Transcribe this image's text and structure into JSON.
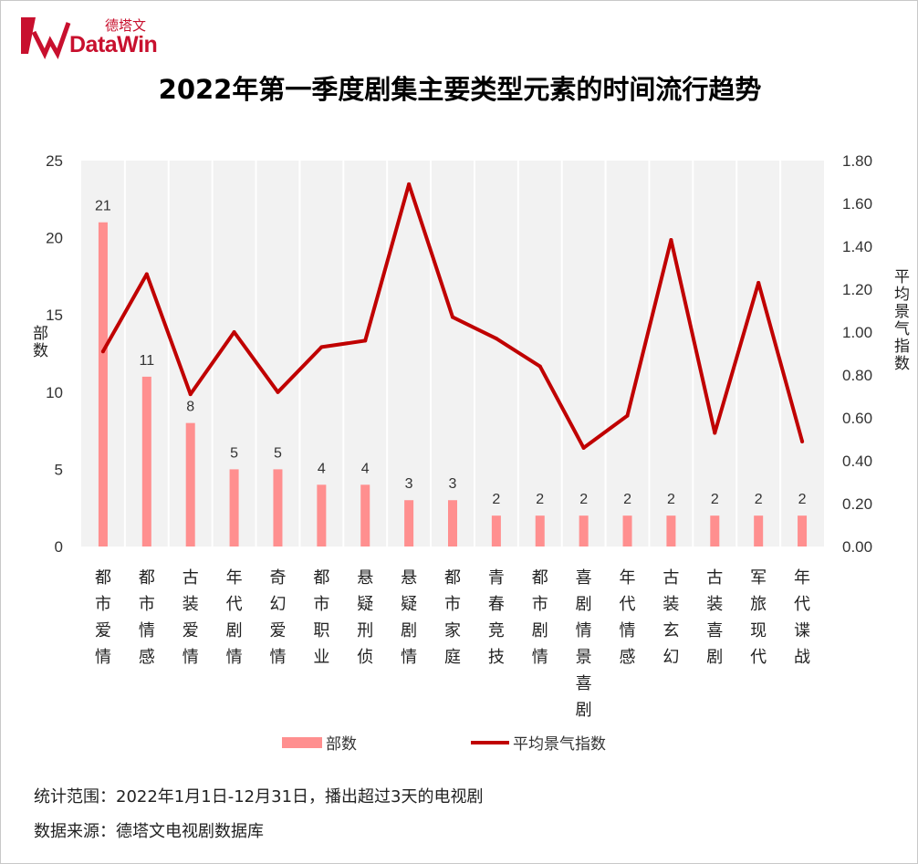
{
  "logo": {
    "cn": "德塔文",
    "en": "DataWin"
  },
  "title": "2022年第一季度剧集主要类型元素的时间流行趋势",
  "legend": {
    "bar_label": "部数",
    "line_label": "平均景气指数"
  },
  "footer": {
    "line1": "统计范围：2022年1月1日-12月31日，播出超过3天的电视剧",
    "line2": "数据来源：德塔文电视剧数据库"
  },
  "colors": {
    "bar": "#ff8f8f",
    "line": "#c00000",
    "brand": "#c8102e",
    "plot_bg": "#f2f2f2"
  },
  "chart_data": {
    "type": "bar+line",
    "title": "2022年第一季度剧集主要类型元素的时间流行趋势",
    "categories": [
      "都市爱情",
      "都市情感",
      "古装爱情",
      "年代剧情",
      "奇幻爱情",
      "都市职业",
      "悬疑刑侦",
      "悬疑剧情",
      "都市家庭",
      "青春竞技",
      "都市剧情",
      "喜剧情景喜剧",
      "年代情感",
      "古装玄幻",
      "古装喜剧",
      "军旅现代",
      "年代谍战"
    ],
    "series": [
      {
        "name": "部数",
        "type": "bar",
        "axis": "left",
        "values": [
          21,
          11,
          8,
          5,
          5,
          4,
          4,
          3,
          3,
          2,
          2,
          2,
          2,
          2,
          2,
          2,
          2
        ]
      },
      {
        "name": "平均景气指数",
        "type": "line",
        "axis": "right",
        "values": [
          0.91,
          1.27,
          0.71,
          1.0,
          0.72,
          0.93,
          0.96,
          1.69,
          1.07,
          0.97,
          0.84,
          0.46,
          0.61,
          1.43,
          0.53,
          1.23,
          0.49
        ]
      }
    ],
    "ylabel_left": "部数",
    "ylabel_right": "平均景气指数",
    "ylim_left": [
      0,
      25
    ],
    "yticks_left": [
      "0",
      "5",
      "10",
      "15",
      "20",
      "25"
    ],
    "ylim_right": [
      0,
      1.8
    ],
    "yticks_right": [
      "0.00",
      "0.20",
      "0.40",
      "0.60",
      "0.80",
      "1.00",
      "1.20",
      "1.40",
      "1.60",
      "1.80"
    ],
    "grid": "vertical",
    "legend_position": "bottom"
  }
}
